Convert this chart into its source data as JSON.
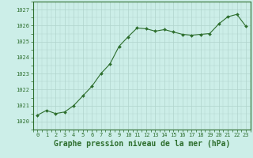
{
  "x": [
    0,
    1,
    2,
    3,
    4,
    5,
    6,
    7,
    8,
    9,
    10,
    11,
    12,
    13,
    14,
    15,
    16,
    17,
    18,
    19,
    20,
    21,
    22,
    23
  ],
  "y": [
    1020.4,
    1020.7,
    1020.5,
    1020.6,
    1021.0,
    1021.6,
    1022.2,
    1023.0,
    1023.6,
    1024.7,
    1025.3,
    1025.85,
    1025.8,
    1025.65,
    1025.75,
    1025.6,
    1025.45,
    1025.4,
    1025.45,
    1025.5,
    1026.1,
    1026.55,
    1026.7,
    1025.95
  ],
  "line_color": "#2d6e2d",
  "marker": "D",
  "marker_size": 2.0,
  "bg_color": "#cceee8",
  "grid_color": "#b0d4cc",
  "xlabel": "Graphe pression niveau de la mer (hPa)",
  "ylim": [
    1019.5,
    1027.5
  ],
  "yticks": [
    1020,
    1021,
    1022,
    1023,
    1024,
    1025,
    1026,
    1027
  ],
  "xlim": [
    -0.5,
    23.5
  ],
  "xtick_labels": [
    "0",
    "1",
    "2",
    "3",
    "4",
    "5",
    "6",
    "7",
    "8",
    "9",
    "10",
    "11",
    "12",
    "13",
    "14",
    "15",
    "16",
    "17",
    "18",
    "19",
    "20",
    "21",
    "22",
    "23"
  ],
  "tick_fontsize": 5.0,
  "xlabel_fontsize": 7.0,
  "line_width": 0.8
}
